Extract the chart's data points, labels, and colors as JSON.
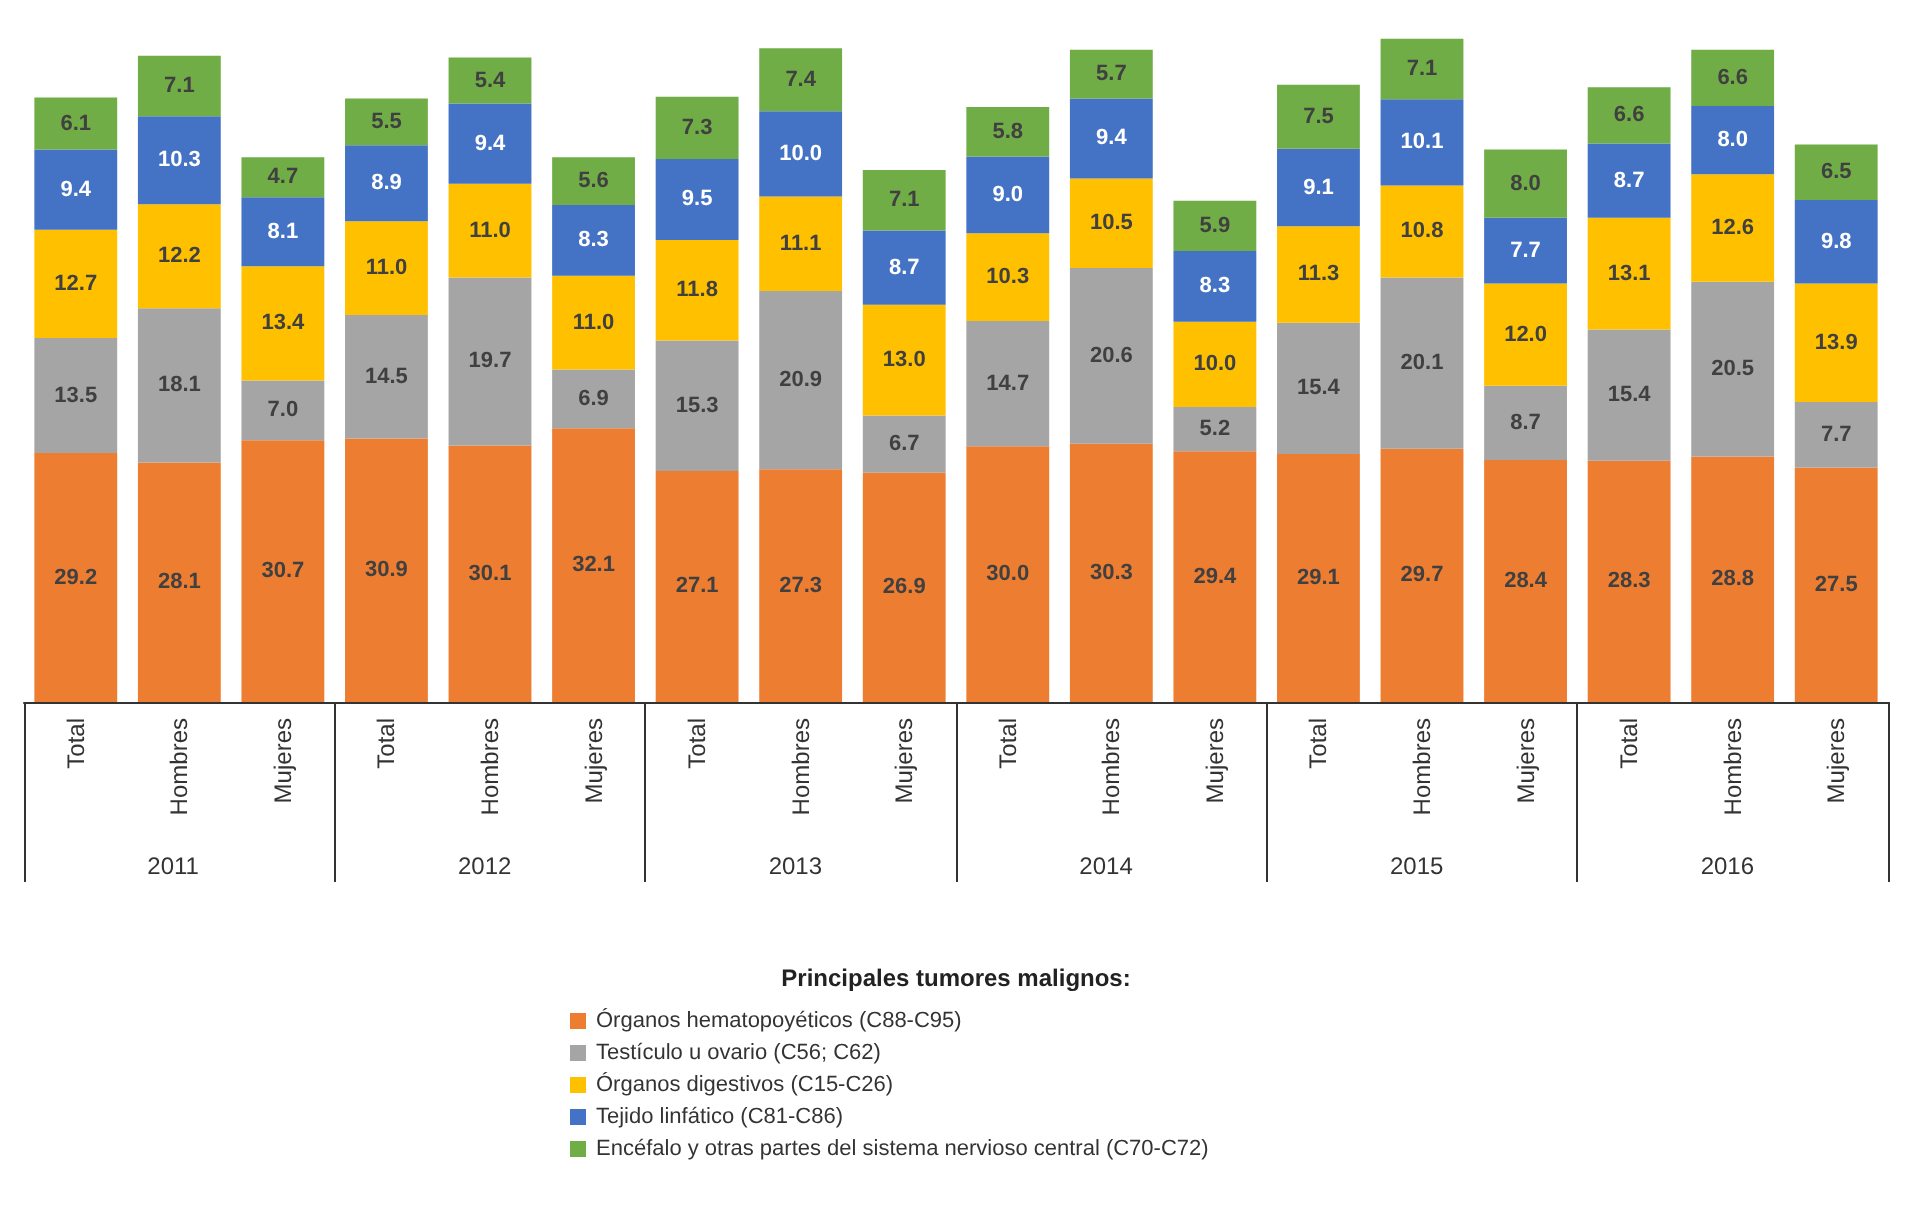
{
  "chart_data": {
    "type": "bar",
    "stacked": true,
    "tick_labels": "x",
    "legend": "bottom",
    "legend_title": "Principales tumores malignos:",
    "categories": [
      "Total",
      "Hombres",
      "Mujeres",
      "Total",
      "Hombres",
      "Mujeres",
      "Total",
      "Hombres",
      "Mujeres",
      "Total",
      "Hombres",
      "Mujeres",
      "Total",
      "Hombres",
      "Mujeres",
      "Total",
      "Hombres",
      "Mujeres"
    ],
    "annotations": [
      "2011",
      "2012",
      "2013",
      "2014",
      "2015",
      "2016"
    ],
    "series": [
      {
        "name": "Órganos hematopoyéticos (C88-C95)",
        "color": "#ed7d31",
        "values": [
          29.2,
          28.1,
          30.7,
          30.9,
          30.1,
          32.1,
          27.1,
          27.3,
          26.9,
          30.0,
          30.3,
          29.4,
          29.1,
          29.7,
          28.4,
          28.3,
          28.8,
          27.5
        ],
        "value_labels": [
          "29.2",
          "28.1",
          "30.7",
          "30.9",
          "30.1",
          "32.1",
          "27.1",
          "27.3",
          "26.9",
          "30.0",
          "30.3",
          "29.4",
          "29.1",
          "29.7",
          "28.4",
          "28.3",
          "28.8",
          "27.5"
        ]
      },
      {
        "name": "Testículo u ovario (C56; C62)",
        "color": "#a5a5a5",
        "values": [
          13.5,
          18.1,
          7.0,
          14.5,
          19.7,
          6.9,
          15.3,
          20.9,
          6.7,
          14.7,
          20.6,
          5.2,
          15.4,
          20.1,
          8.7,
          15.4,
          20.5,
          7.7
        ],
        "value_labels": [
          "13.5",
          "18.1",
          "7.0",
          "14.5",
          "19.7",
          "6.9",
          "15.3",
          "20.9",
          "6.7",
          "14.7",
          "20.6",
          "5.2",
          "15.4",
          "20.1",
          "8.7",
          "15.4",
          "20.5",
          "7.7"
        ]
      },
      {
        "name": "Órganos digestivos (C15-C26)",
        "color": "#ffc000",
        "values": [
          12.7,
          12.2,
          13.4,
          11.0,
          11.0,
          11.0,
          11.8,
          11.1,
          13.0,
          10.3,
          10.5,
          10.0,
          11.3,
          10.8,
          12.0,
          13.1,
          12.6,
          13.9
        ],
        "value_labels": [
          "12.7",
          "12.2",
          "13.4",
          "11.0",
          "11.0",
          "11.0",
          "11.8",
          "11.1",
          "13.0",
          "10.3",
          "10.5",
          "10.0",
          "11.3",
          "10.8",
          "12.0",
          "13.1",
          "12.6",
          "13.9"
        ]
      },
      {
        "name": "Tejido linfático (C81-C86)",
        "color": "#4472c4",
        "values": [
          9.4,
          10.3,
          8.1,
          8.9,
          9.4,
          8.3,
          9.5,
          10.0,
          8.7,
          9.0,
          9.4,
          8.3,
          9.1,
          10.1,
          7.7,
          8.7,
          8.0,
          9.8
        ],
        "value_labels": [
          "9.4",
          "10.3",
          "8.1",
          "8.9",
          "9.4",
          "8.3",
          "9.5",
          "10.0",
          "8.7",
          "9.0",
          "9.4",
          "8.3",
          "9.1",
          "10.1",
          "7.7",
          "8.7",
          "8.0",
          "9.8"
        ]
      },
      {
        "name": "Encéfalo y otras partes del sistema nervioso central (C70-C72)",
        "color": "#70ad47",
        "values": [
          6.1,
          7.1,
          4.7,
          5.5,
          5.4,
          5.6,
          7.3,
          7.4,
          7.1,
          5.8,
          5.7,
          5.9,
          7.5,
          7.1,
          8.0,
          6.6,
          6.6,
          6.5
        ],
        "value_labels": [
          "6.1",
          "7.1",
          "4.7",
          "5.5",
          "5.4",
          "5.6",
          "7.3",
          "7.4",
          "7.1",
          "5.8",
          "5.7",
          "5.9",
          "7.5",
          "7.1",
          "8.0",
          "6.6",
          "6.6",
          "6.5"
        ]
      }
    ]
  }
}
